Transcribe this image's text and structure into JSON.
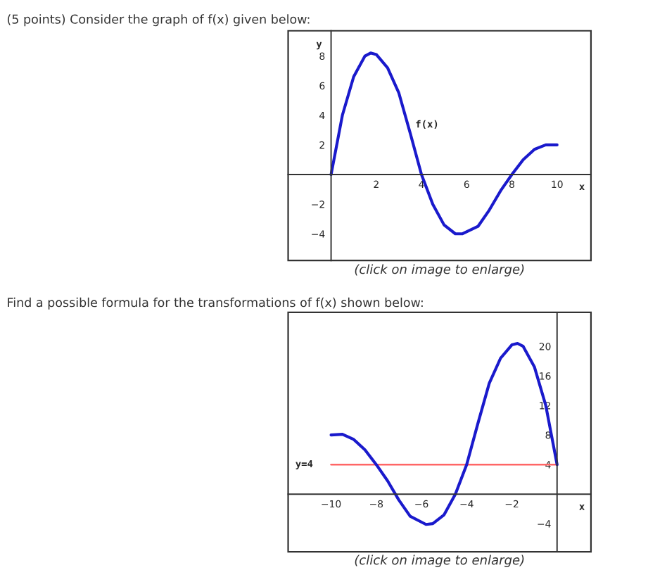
{
  "chart_data": [
    {
      "type": "line",
      "title": "(5 points) Consider the graph of f(x) given below:",
      "xlabel": "x",
      "ylabel": "y",
      "x": [
        0,
        0.5,
        1,
        1.5,
        1.75,
        2,
        2.5,
        3,
        3.5,
        4,
        4.5,
        5,
        5.5,
        5.8,
        6.5,
        7,
        7.5,
        8,
        8.5,
        9,
        9.5,
        10
      ],
      "series": [
        {
          "color": "#1a1acc",
          "values": [
            0,
            4,
            6.6,
            8,
            8.2,
            8.1,
            7.2,
            5.5,
            2.8,
            0,
            -2,
            -3.4,
            -4,
            -4,
            -3.5,
            -2.4,
            -1.1,
            0,
            1,
            1.7,
            2,
            2
          ]
        }
      ],
      "xlim": [
        -1.9,
        11.5
      ],
      "ylim": [
        -5.8,
        9.7
      ],
      "xticks": [
        2,
        4,
        6,
        8,
        10
      ],
      "yticks": [
        -4,
        -2,
        2,
        4,
        6,
        8
      ],
      "grid": false,
      "marker": "none",
      "line_style": "solid",
      "annotations": [
        "f(x)",
        "(click on image to enlarge)"
      ]
    },
    {
      "type": "line",
      "title": "Find a possible formula for the transformations of f(x) shown below:",
      "xlabel": "x",
      "x": [
        0,
        -0.5,
        -1,
        -1.5,
        -1.75,
        -2,
        -2.5,
        -3,
        -3.5,
        -4,
        -4.5,
        -5,
        -5.5,
        -5.8,
        -6.5,
        -7,
        -7.5,
        -8,
        -8.5,
        -9,
        -9.5,
        -10
      ],
      "series": [
        {
          "color": "#1a1acc",
          "values": [
            4,
            12,
            17.2,
            20,
            20.4,
            20.2,
            18.4,
            15,
            9.6,
            4,
            0,
            -2.8,
            -4,
            -4.1,
            -3,
            -0.8,
            1.8,
            4,
            6,
            7.4,
            8.1,
            8
          ]
        }
      ],
      "xlim": [
        -11.9,
        1.5
      ],
      "ylim": [
        -7.8,
        24.6
      ],
      "xticks": [
        -10,
        -8,
        -6,
        -4,
        -2
      ],
      "yticks": [
        -4,
        4,
        8,
        12,
        16,
        20
      ],
      "grid": false,
      "marker": "none",
      "line_style": "solid",
      "ref_lines": [
        {
          "axis": "y",
          "value": 4,
          "label": "y=4",
          "color": "#ff6666",
          "line_style": "solid"
        }
      ],
      "annotations": [
        "(click on image to enlarge)"
      ]
    }
  ]
}
